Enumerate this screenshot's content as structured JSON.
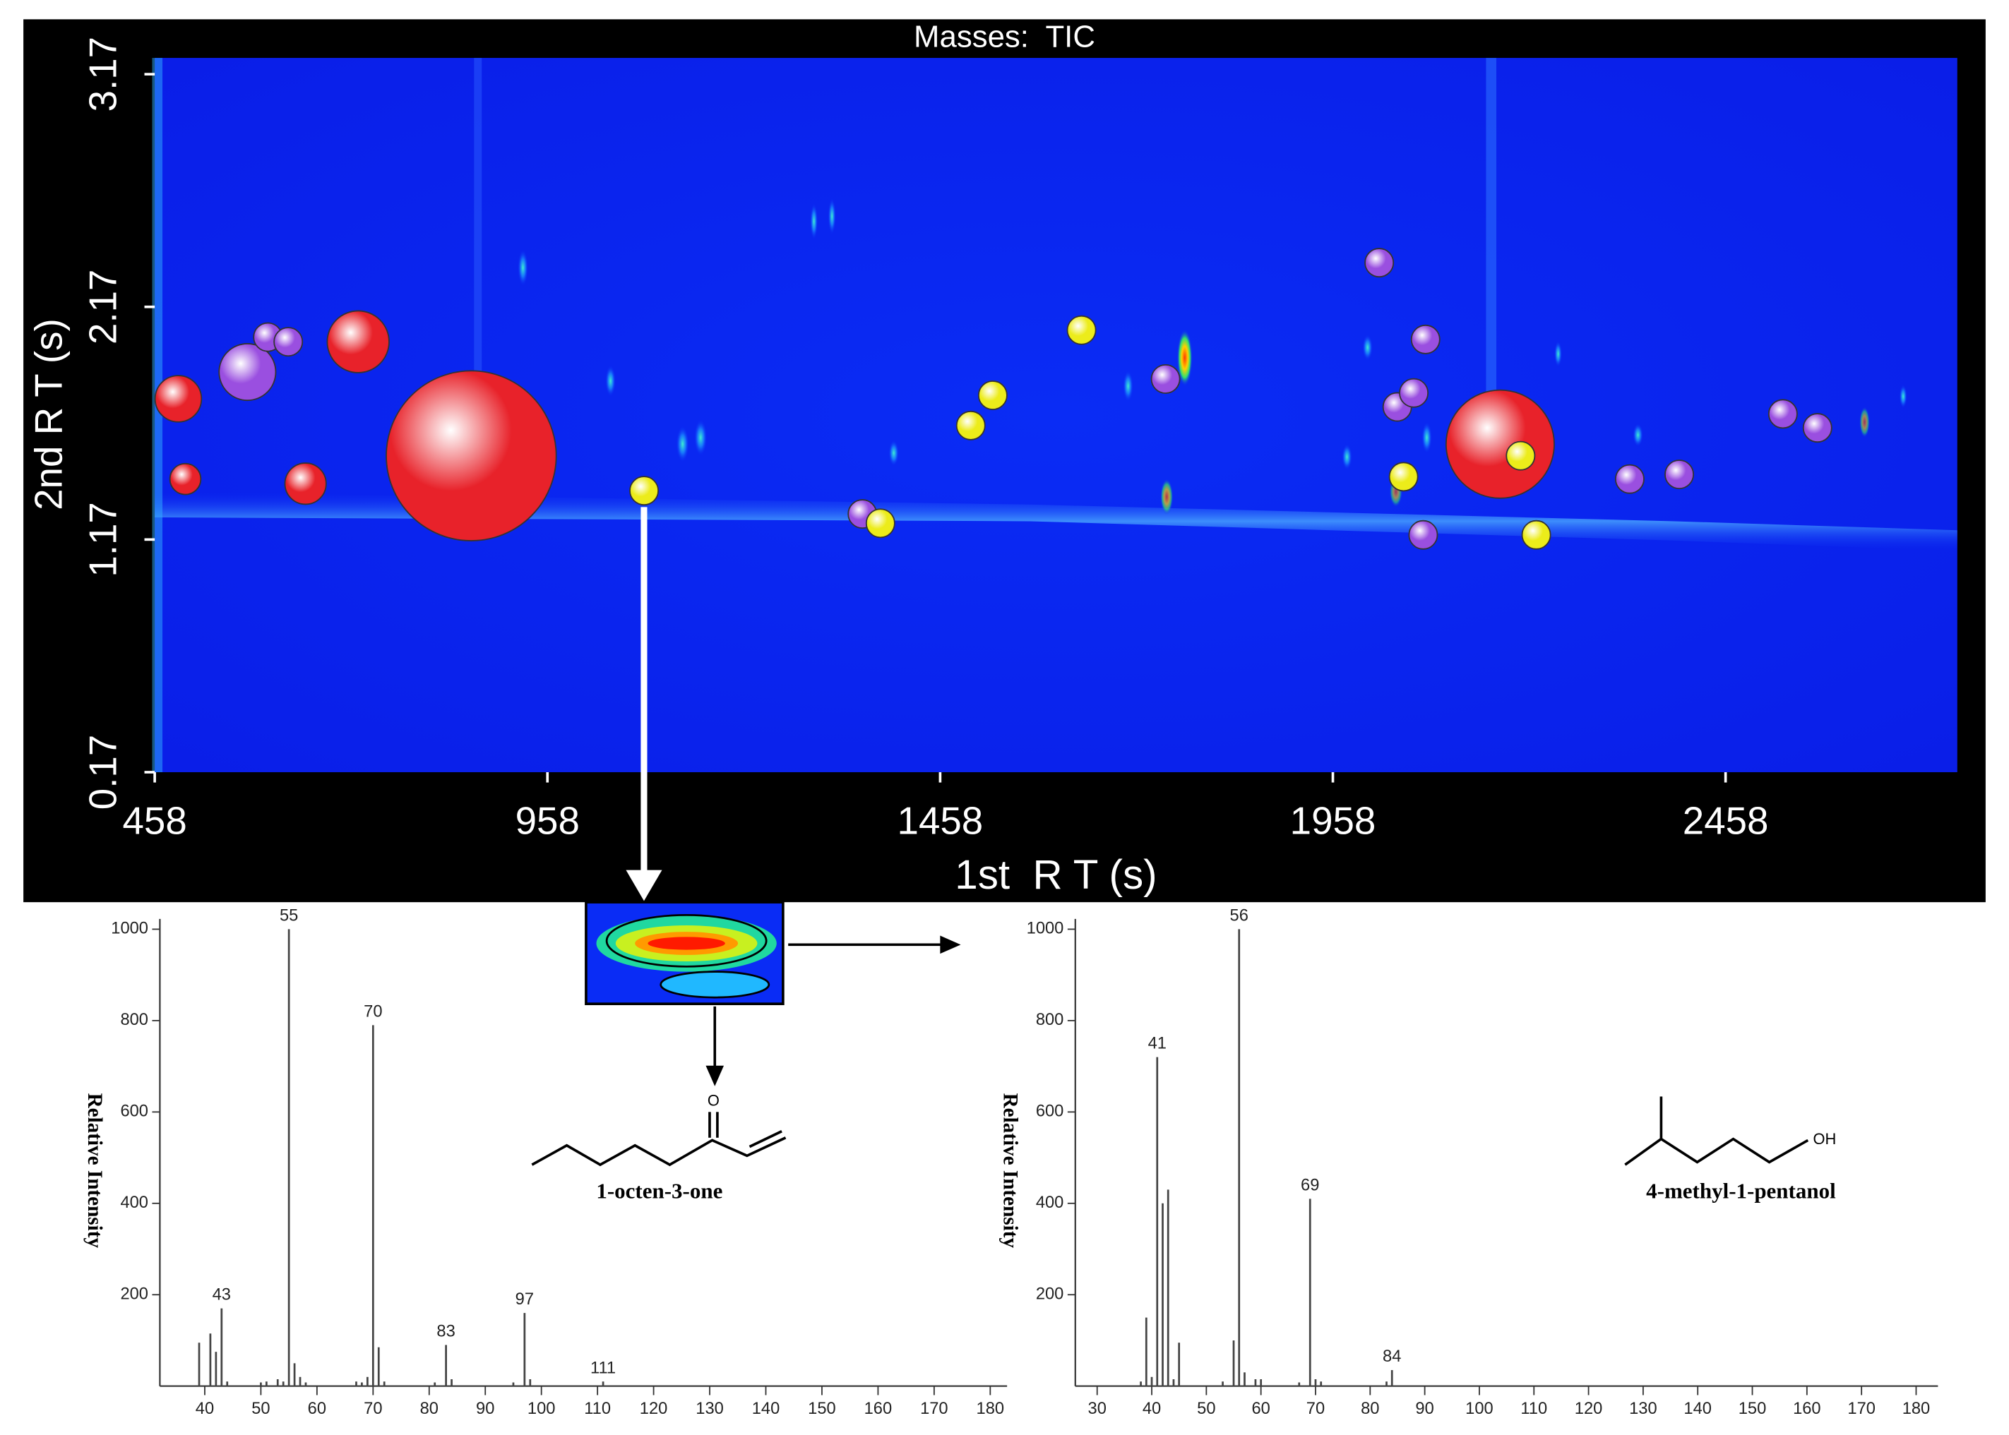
{
  "chart_data": [
    {
      "type": "bubble",
      "title": "Masses:  TIC",
      "x_label": "1st  R T (s)",
      "y_label": "2nd R T (s)",
      "xlim": [
        458,
        2753
      ],
      "ylim": [
        0.17,
        3.24
      ],
      "xticks": [
        458,
        958,
        1458,
        1958,
        2458
      ],
      "yticks": [
        0.17,
        1.17,
        2.17,
        3.17
      ],
      "series": [
        {
          "color": "#e8222a",
          "x": [
            488,
            717,
            861,
            497,
            650,
            2171
          ],
          "values": [
            1.775,
            2.02,
            1.53,
            1.43,
            1.41,
            1.58
          ],
          "sizes": [
            18,
            24,
            66,
            12,
            16,
            42
          ]
        },
        {
          "color": "#9a4fe0",
          "x": [
            576,
            602,
            628,
            1359,
            1745,
            2017,
            2076,
            2040,
            2061,
            2073,
            2336,
            2399,
            2531,
            2575
          ],
          "values": [
            1.89,
            2.04,
            2.02,
            1.28,
            1.86,
            2.36,
            2.03,
            1.74,
            1.8,
            1.19,
            1.43,
            1.45,
            1.71,
            1.65
          ],
          "sizes": [
            22,
            11,
            11,
            11,
            11,
            11,
            11,
            11,
            11,
            11,
            11,
            11,
            11,
            11
          ]
        },
        {
          "color": "#ecec1a",
          "x": [
            1081,
            1382,
            1497,
            1525,
            1638,
            2048,
            2197,
            2217
          ],
          "values": [
            1.38,
            1.24,
            1.66,
            1.79,
            2.07,
            1.44,
            1.53,
            1.19
          ],
          "sizes": [
            11,
            11,
            11,
            11,
            11,
            11,
            11,
            11
          ]
        }
      ]
    },
    {
      "type": "spectrum",
      "y_label": "Relative Intensity",
      "compound": "1-octen-3-one",
      "atom_labels": [
        "O"
      ],
      "xlim": [
        32,
        183
      ],
      "ylim": [
        0,
        1000
      ],
      "xticks": [
        40,
        50,
        60,
        70,
        80,
        90,
        100,
        110,
        120,
        130,
        140,
        150,
        160,
        170,
        180
      ],
      "yticks": [
        200,
        400,
        600,
        800,
        1000
      ],
      "color": "#444444",
      "x": [
        39,
        41,
        42,
        43,
        44,
        50,
        51,
        53,
        54,
        55,
        56,
        57,
        58,
        67,
        68,
        69,
        70,
        71,
        72,
        81,
        83,
        84,
        95,
        97,
        98,
        111
      ],
      "values": [
        95,
        115,
        75,
        170,
        10,
        8,
        10,
        15,
        10,
        1000,
        50,
        20,
        8,
        10,
        8,
        20,
        790,
        85,
        10,
        8,
        90,
        15,
        8,
        160,
        15,
        10
      ],
      "peak_labels": [
        43,
        55,
        70,
        83,
        97,
        111
      ]
    },
    {
      "type": "spectrum",
      "y_label": "Relative Intensity",
      "compound": "4-methyl-1-pentanol",
      "atom_labels": [
        "OH"
      ],
      "xlim": [
        26,
        184
      ],
      "ylim": [
        0,
        1000
      ],
      "xticks": [
        30,
        40,
        50,
        60,
        70,
        80,
        90,
        100,
        110,
        120,
        130,
        140,
        150,
        160,
        170,
        180
      ],
      "yticks": [
        200,
        400,
        600,
        800,
        1000
      ],
      "color": "#444444",
      "x": [
        38,
        39,
        40,
        41,
        42,
        43,
        44,
        45,
        53,
        55,
        56,
        57,
        59,
        60,
        67,
        69,
        70,
        71,
        83,
        84
      ],
      "values": [
        10,
        150,
        20,
        720,
        400,
        430,
        15,
        95,
        10,
        100,
        1000,
        30,
        15,
        15,
        8,
        410,
        15,
        10,
        10,
        35
      ],
      "peak_labels": [
        41,
        56,
        69,
        84
      ]
    }
  ]
}
